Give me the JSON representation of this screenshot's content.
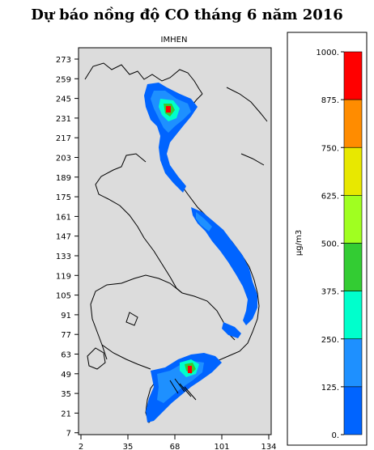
{
  "title": "Dự báo nồng độ CO tháng 6 năm 2016",
  "panel_label": "IMHEN",
  "y_ticks": [
    "273",
    "259",
    "245",
    "231",
    "217",
    "203",
    "189",
    "175",
    "161",
    "147",
    "133",
    "119",
    "105",
    "91",
    "77",
    "63",
    "49",
    "35",
    "21",
    "7"
  ],
  "x_ticks": [
    "2",
    "35",
    "68",
    "101",
    "134"
  ],
  "legend": {
    "unit_label": "µg/m3",
    "levels": [
      "1000.",
      "875.",
      "750.",
      "625.",
      "500.",
      "375.",
      "250.",
      "125.",
      "0."
    ],
    "colors": [
      "#ff0000",
      "#ff8c00",
      "#e8e800",
      "#a0ff20",
      "#33cc33",
      "#00ffcc",
      "#1e90ff",
      "#0064ff",
      "#dddddd"
    ]
  },
  "map": {
    "background_color": "#dcdcdc",
    "high_concentration_areas": [
      "Hanoi region",
      "Ho Chi Minh City region"
    ]
  }
}
